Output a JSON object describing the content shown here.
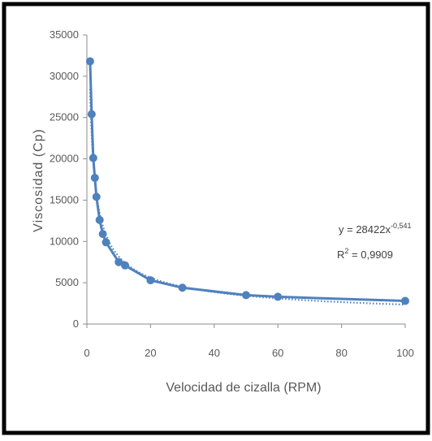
{
  "chart_data": {
    "type": "scatter",
    "title": "",
    "xlabel": "Velocidad de cizalla (RPM)",
    "ylabel": "Viscosidad (Cp)",
    "xlim": [
      0,
      100
    ],
    "ylim": [
      0,
      35000
    ],
    "x_ticks": [
      "0",
      "20",
      "40",
      "60",
      "80",
      "100"
    ],
    "y_ticks": [
      "0",
      "5000",
      "10000",
      "15000",
      "20000",
      "25000",
      "30000",
      "35000"
    ],
    "grid": false,
    "legend": "none",
    "series": [
      {
        "color": "#4f81bd",
        "x": [
          1,
          1.5,
          2,
          2.5,
          3,
          4,
          5,
          6,
          10,
          12,
          20,
          30,
          50,
          60,
          100
        ],
        "y": [
          31800,
          25400,
          20100,
          17700,
          15400,
          12600,
          10900,
          9900,
          7500,
          7100,
          5300,
          4400,
          3500,
          3300,
          2800
        ]
      }
    ],
    "trendline": {
      "type": "power",
      "coefficient": 28422,
      "exponent": -0.541,
      "color": "#4f81bd"
    },
    "annotations": {
      "equation_prefix": "y = 28422x",
      "equation_exponent": "-0,541",
      "r2_prefix": "R",
      "r2_power": "2",
      "r2_suffix": " = 0,9909"
    }
  }
}
